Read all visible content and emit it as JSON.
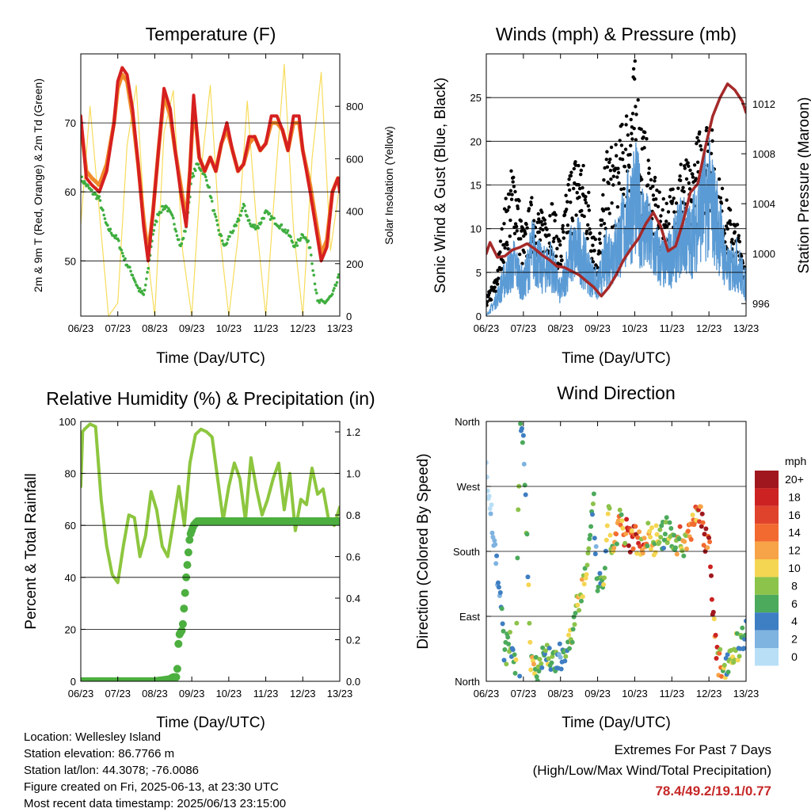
{
  "panels": {
    "temp": {
      "title": "Temperature (F)",
      "ylabel": "2m & 9m T (Red, Orange) & 2m Td (Green)",
      "ylabel2": "Solar Insolation (Yellow)",
      "xlabel": "Time (Day/UTC)"
    },
    "wind": {
      "title": "Winds (mph) & Pressure (mb)",
      "ylabel": "Sonic Wind & Gust (Blue, Black)",
      "ylabel2": "Station Pressure (Maroon)",
      "xlabel": "Time (Day/UTC)"
    },
    "rh": {
      "title": "Relative Humidity (%) & Precipitation (in)",
      "ylabel": "Percent & Total Rainfall",
      "xlabel": "Time (Day/UTC)"
    },
    "dir": {
      "title": "Wind Direction",
      "ylabel": "Direction (Colored By Speed)",
      "xlabel": "Time (Day/UTC)",
      "legend_unit": "mph"
    }
  },
  "footer": {
    "location": "Location: Wellesley Island",
    "elevation": "Station elevation: 86.7766 m",
    "latlon": "Station lat/lon: 44.3078; -76.0086",
    "created": "Figure created on Fri, 2025-06-13, at 23:30 UTC",
    "recent": "Most recent data timestamp: 2025/06/13 23:15:00"
  },
  "extremes": {
    "line1": "Extremes For Past 7 Days",
    "line2": "(High/Low/Max Wind/Total Precipitation)",
    "values": "78.4/49.2/19.1/0.77"
  },
  "chart_data": [
    {
      "type": "line",
      "title": "Temperature (F)",
      "xlabel": "Time (Day/UTC)",
      "ylabel": "2m & 9m T (Red, Orange) & 2m Td (Green)",
      "ylabel_right": "Solar Insolation (Yellow)",
      "x_ticks": [
        "06/23",
        "07/23",
        "08/23",
        "09/23",
        "10/23",
        "11/23",
        "12/23",
        "13/23"
      ],
      "ylim": [
        42,
        80
      ],
      "yticks": [
        50,
        60,
        70
      ],
      "ylim_right": [
        0,
        1000
      ],
      "yticks_right": [
        0,
        200,
        400,
        600,
        800
      ],
      "grid": "horizontal",
      "colors": {
        "t2m": "#d62020",
        "t9m": "#f08a2a",
        "td": "#3fae3f",
        "solar": "#f7dc5c"
      },
      "series": [
        {
          "x": [
            6.0,
            6.15,
            6.3,
            6.5,
            6.7,
            6.9,
            7.0,
            7.12,
            7.25,
            7.4,
            7.55,
            7.7,
            7.82,
            7.95,
            8.1,
            8.25,
            8.42,
            8.55,
            8.7,
            8.85,
            8.95,
            9.05,
            9.2,
            9.35,
            9.5,
            9.65,
            9.8,
            9.95,
            10.1,
            10.25,
            10.4,
            10.55,
            10.7,
            10.85,
            11.0,
            11.15,
            11.3,
            11.45,
            11.6,
            11.75,
            11.9,
            12.0,
            12.2,
            12.35,
            12.5,
            12.65,
            12.8,
            12.95,
            13.0
          ],
          "values": [
            71,
            62,
            61,
            60,
            63,
            70,
            76,
            78,
            77,
            72,
            64,
            55,
            50,
            57,
            66,
            75,
            72,
            66,
            60,
            55,
            63,
            74,
            65,
            63,
            65,
            63,
            67,
            70,
            66,
            63,
            64,
            68,
            68,
            66,
            67,
            71,
            71,
            69,
            66,
            71,
            71,
            66,
            60,
            55,
            50,
            52,
            60,
            62,
            60
          ]
        },
        {
          "x": [
            6.0,
            6.15,
            6.3,
            6.5,
            6.7,
            6.9,
            7.0,
            7.12,
            7.25,
            7.4,
            7.55,
            7.7,
            7.82,
            7.95,
            8.1,
            8.25,
            8.42,
            8.55,
            8.7,
            8.85,
            8.95,
            9.05,
            9.2,
            9.35,
            9.5,
            9.65,
            9.8,
            9.95,
            10.1,
            10.25,
            10.4,
            10.55,
            10.7,
            10.85,
            11.0,
            11.15,
            11.3,
            11.45,
            11.6,
            11.75,
            11.9,
            12.0,
            12.2,
            12.35,
            12.5,
            12.65,
            12.8,
            12.95,
            13.0
          ],
          "values": [
            70,
            63,
            62,
            61,
            64,
            70,
            75,
            77,
            76,
            71,
            64,
            56,
            51,
            57,
            66,
            74,
            71,
            66,
            61,
            56,
            63,
            73,
            65,
            63,
            65,
            63,
            67,
            69,
            66,
            63,
            64,
            67,
            68,
            66,
            67,
            70,
            70,
            69,
            66,
            70,
            70,
            66,
            61,
            56,
            51,
            53,
            60,
            62,
            61
          ]
        },
        {
          "x": [
            6.0,
            6.3,
            6.5,
            6.7,
            6.85,
            7.0,
            7.2,
            7.4,
            7.55,
            7.7,
            7.8,
            7.95,
            8.1,
            8.3,
            8.5,
            8.7,
            8.85,
            9.0,
            9.15,
            9.3,
            9.45,
            9.6,
            9.75,
            9.9,
            10.05,
            10.2,
            10.4,
            10.6,
            10.8,
            11.0,
            11.2,
            11.4,
            11.6,
            11.8,
            12.0,
            12.2,
            12.4,
            12.6,
            12.8,
            13.0
          ],
          "values": [
            62,
            60,
            59,
            55,
            54,
            53,
            50,
            48,
            46,
            45,
            48,
            54,
            57,
            58,
            56,
            52,
            55,
            62,
            64,
            63,
            61,
            57,
            54,
            52,
            54,
            55,
            58,
            55,
            55,
            57,
            56,
            55,
            54,
            52,
            54,
            52,
            44,
            44,
            45,
            48
          ]
        },
        {
          "x": [
            6.0,
            6.25,
            6.5,
            6.75,
            7.0,
            7.25,
            7.5,
            7.75,
            8.0,
            8.25,
            8.5,
            8.75,
            9.0,
            9.25,
            9.5,
            9.75,
            10.0,
            10.25,
            10.5,
            10.75,
            11.0,
            11.25,
            11.5,
            11.75,
            12.0,
            12.25,
            12.5,
            12.75,
            13.0
          ],
          "values": [
            350,
            800,
            400,
            0,
            50,
            650,
            880,
            300,
            0,
            700,
            860,
            250,
            0,
            550,
            880,
            320,
            0,
            300,
            820,
            350,
            0,
            500,
            960,
            330,
            0,
            600,
            930,
            250,
            500
          ]
        }
      ]
    },
    {
      "type": "scatter",
      "title": "Winds (mph) & Pressure (mb)",
      "xlabel": "Time (Day/UTC)",
      "ylabel": "Sonic Wind & Gust (Blue, Black)",
      "ylabel_right": "Station Pressure (Maroon)",
      "x_ticks": [
        "06/23",
        "07/23",
        "08/23",
        "09/23",
        "10/23",
        "11/23",
        "12/23",
        "13/23"
      ],
      "ylim": [
        0,
        30
      ],
      "yticks": [
        0,
        5,
        10,
        15,
        20,
        25
      ],
      "ylim_right": [
        995,
        1016
      ],
      "yticks_right": [
        996,
        1000,
        1004,
        1008,
        1012
      ],
      "grid": "horizontal",
      "colors": {
        "wind": "#5b9bd5",
        "gust": "#000000",
        "pressure": "#a52a2a"
      },
      "series": [
        {
          "x": [
            6.0,
            6.25,
            6.5,
            6.75,
            7.0,
            7.25,
            7.5,
            7.75,
            8.0,
            8.25,
            8.5,
            8.75,
            9.0,
            9.25,
            9.5,
            9.75,
            10.0,
            10.25,
            10.5,
            10.75,
            11.0,
            11.25,
            11.5,
            11.75,
            12.0,
            12.25,
            12.5,
            12.75,
            13.0
          ],
          "values": [
            0,
            2,
            5,
            7,
            4,
            9,
            6,
            7,
            3,
            8,
            9,
            6,
            4,
            8,
            9,
            12,
            16,
            12,
            9,
            7,
            8,
            11,
            10,
            14,
            16,
            12,
            6,
            7,
            4
          ]
        },
        {
          "x": [
            6.0,
            6.25,
            6.5,
            6.75,
            7.0,
            7.25,
            7.5,
            7.75,
            8.0,
            8.25,
            8.5,
            8.75,
            9.0,
            9.25,
            9.5,
            9.75,
            10.0,
            10.25,
            10.5,
            10.75,
            11.0,
            11.25,
            11.5,
            11.75,
            12.0,
            12.25,
            12.5,
            12.75,
            13.0
          ],
          "values": [
            2,
            4,
            12,
            17,
            9,
            13,
            11,
            13,
            8,
            16,
            18,
            14,
            7,
            18,
            18,
            22,
            27,
            20,
            15,
            12,
            14,
            17,
            16,
            20,
            22,
            15,
            12,
            10,
            6
          ]
        },
        {
          "x": [
            6.0,
            6.1,
            6.3,
            6.5,
            6.7,
            6.9,
            7.1,
            7.3,
            7.5,
            7.7,
            7.9,
            8.1,
            8.3,
            8.5,
            8.7,
            8.9,
            9.1,
            9.3,
            9.5,
            9.7,
            9.9,
            10.1,
            10.3,
            10.5,
            10.7,
            10.9,
            11.1,
            11.3,
            11.5,
            11.7,
            11.9,
            12.1,
            12.3,
            12.5,
            12.7,
            12.9,
            13.0
          ],
          "values": [
            1000,
            1000.9,
            999.7,
            999.8,
            1000.3,
            1000.5,
            1000.8,
            1000.4,
            999.9,
            999.5,
            999,
            998.9,
            998.6,
            998.3,
            997.8,
            997.3,
            996.6,
            997.3,
            998.3,
            999.5,
            1000.4,
            1001.2,
            1002.4,
            1003.3,
            1002.2,
            1000.2,
            1000.6,
            1002.5,
            1004.9,
            1005.6,
            1008.5,
            1011,
            1012.5,
            1013.6,
            1013.1,
            1012.2,
            1011.3
          ]
        }
      ]
    },
    {
      "type": "line",
      "title": "Relative Humidity (%) & Precipitation (in)",
      "xlabel": "Time (Day/UTC)",
      "ylabel": "Percent & Total Rainfall",
      "x_ticks": [
        "06/23",
        "07/23",
        "08/23",
        "09/23",
        "10/23",
        "11/23",
        "12/23",
        "13/23"
      ],
      "ylim": [
        0,
        100
      ],
      "yticks": [
        0,
        20,
        40,
        60,
        80,
        100
      ],
      "ylim_right": [
        0,
        1.25
      ],
      "yticks_right": [
        0.0,
        0.2,
        0.4,
        0.6,
        0.8,
        1.0,
        1.2
      ],
      "grid": "horizontal",
      "colors": {
        "rh": "#8dc63f",
        "precip": "#4caf3f"
      },
      "series": [
        {
          "x": [
            6.0,
            6.05,
            6.1,
            6.25,
            6.4,
            6.55,
            6.7,
            6.85,
            7.0,
            7.15,
            7.3,
            7.45,
            7.6,
            7.75,
            7.9,
            8.05,
            8.2,
            8.35,
            8.5,
            8.65,
            8.8,
            8.95,
            9.1,
            9.25,
            9.4,
            9.55,
            9.7,
            9.85,
            10.0,
            10.15,
            10.3,
            10.45,
            10.6,
            10.75,
            10.9,
            11.05,
            11.2,
            11.35,
            11.5,
            11.65,
            11.8,
            11.95,
            12.1,
            12.25,
            12.4,
            12.55,
            12.7,
            12.85,
            13.0
          ],
          "values": [
            75,
            96,
            97,
            99,
            98,
            70,
            52,
            41,
            38,
            52,
            64,
            63,
            48,
            56,
            73,
            66,
            52,
            48,
            61,
            75,
            60,
            84,
            95,
            97,
            96,
            94,
            78,
            62,
            75,
            84,
            78,
            62,
            86,
            74,
            64,
            70,
            78,
            84,
            66,
            80,
            58,
            70,
            68,
            82,
            72,
            74,
            62,
            60,
            67
          ]
        },
        {
          "x": [
            6.0,
            7.0,
            8.0,
            8.4,
            8.5,
            8.6,
            8.65,
            8.75,
            8.85,
            8.95,
            9.05,
            9.15,
            9.3,
            9.6,
            10.0,
            11.0,
            12.0,
            13.0
          ],
          "values": [
            0,
            0,
            0,
            0.01,
            0.02,
            0.02,
            0.22,
            0.25,
            0.5,
            0.7,
            0.75,
            0.77,
            0.77,
            0.77,
            0.77,
            0.77,
            0.77,
            0.77
          ]
        }
      ]
    },
    {
      "type": "scatter",
      "title": "Wind Direction",
      "xlabel": "Time (Day/UTC)",
      "ylabel": "Direction (Colored By Speed)",
      "x_ticks": [
        "06/23",
        "07/23",
        "08/23",
        "09/23",
        "10/23",
        "11/23",
        "12/23",
        "13/23"
      ],
      "y_ticks": [
        "North",
        "East",
        "South",
        "West",
        "North"
      ],
      "ylim": [
        0,
        360
      ],
      "grid": "horizontal",
      "legend": {
        "title": "mph",
        "placement": "right",
        "labels": [
          "20+",
          "18",
          "16",
          "14",
          "12",
          "10",
          "8",
          "6",
          "4",
          "2",
          "0"
        ],
        "colors": [
          "#a0181e",
          "#cc2222",
          "#e0432c",
          "#f26a30",
          "#f7a347",
          "#f5d652",
          "#8cc34a",
          "#4caa5c",
          "#3e7ec2",
          "#7fb3e0",
          "#b9dff7"
        ]
      },
      "series": [
        {
          "x": [
            6.0,
            6.2,
            6.4,
            6.5,
            6.6,
            6.8,
            6.9,
            7.0,
            7.2,
            7.4,
            7.6,
            7.8,
            7.9,
            8.0,
            8.1,
            8.2,
            8.3,
            8.4,
            8.5,
            8.6,
            8.65,
            8.75,
            8.8,
            8.9,
            9.0,
            9.1,
            9.2,
            9.3,
            9.4,
            9.5,
            9.6,
            9.7,
            9.8,
            9.9,
            10.0,
            10.1,
            10.2,
            10.3,
            10.4,
            10.5,
            10.6,
            10.7,
            10.8,
            10.9,
            11.0,
            11.1,
            11.2,
            11.3,
            11.4,
            11.5,
            11.6,
            11.7,
            11.8,
            11.9,
            12.0,
            12.2,
            12.4,
            12.6,
            12.8,
            13.0
          ],
          "values": [
            300,
            200,
            100,
            30,
            60,
            20,
            350,
            345,
            30,
            20,
            40,
            30,
            20,
            35,
            40,
            50,
            60,
            90,
            110,
            130,
            150,
            170,
            200,
            240,
            120,
            140,
            150,
            230,
            180,
            200,
            230,
            190,
            210,
            195,
            200,
            195,
            190,
            200,
            205,
            190,
            200,
            195,
            205,
            210,
            195,
            190,
            200,
            185,
            200,
            210,
            230,
            240,
            220,
            200,
            195,
            30,
            20,
            40,
            50,
            70
          ]
        }
      ]
    }
  ]
}
